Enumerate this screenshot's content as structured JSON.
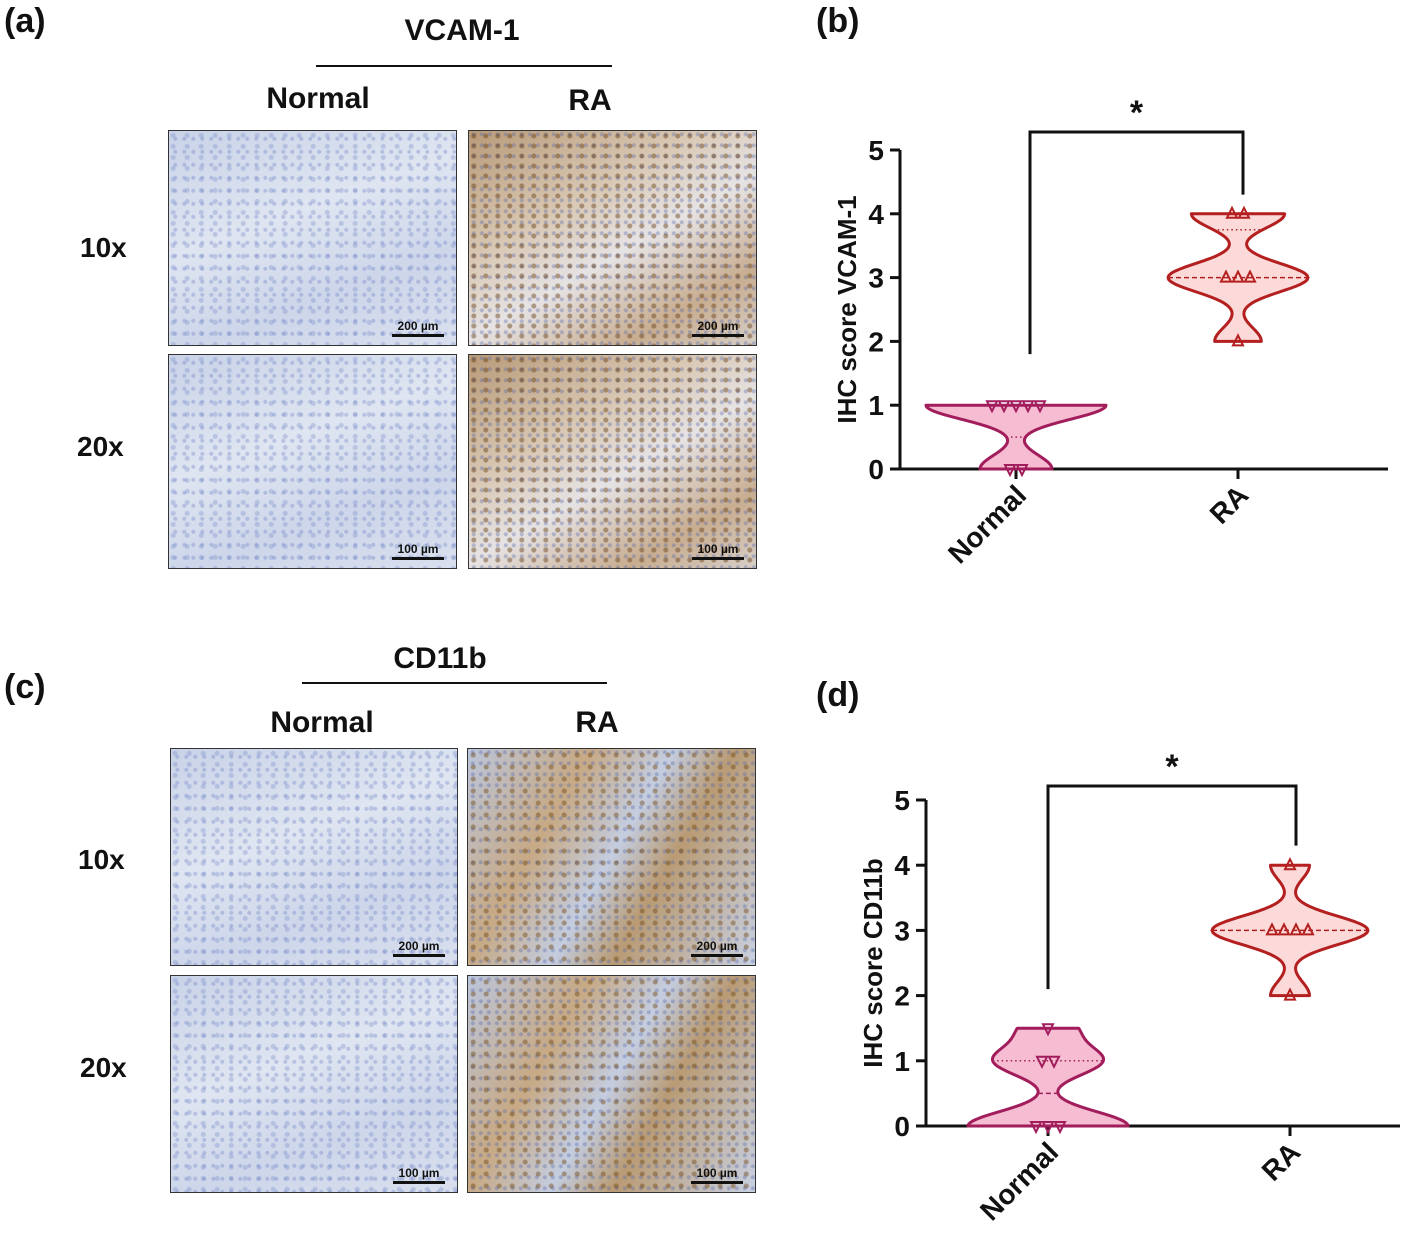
{
  "panels": {
    "a": {
      "label": "(a)",
      "marker": "VCAM-1",
      "cols": [
        "Normal",
        "RA"
      ],
      "rows": [
        "10x",
        "20x"
      ],
      "scales": [
        "200 µm",
        "100 µm"
      ]
    },
    "c": {
      "label": "(c)",
      "marker": "CD11b",
      "cols": [
        "Normal",
        "RA"
      ],
      "rows": [
        "10x",
        "20x"
      ],
      "scales": [
        "200 µm",
        "100 µm"
      ]
    },
    "b": {
      "label": "(b)"
    },
    "d": {
      "label": "(d)"
    }
  },
  "colors": {
    "normal_fill": "#f5bcd2",
    "normal_stroke": "#a11d5c",
    "ra_fill": "#fcdada",
    "ra_stroke": "#b41f1f"
  },
  "chart_data": [
    {
      "type": "violin",
      "panel": "b",
      "ylabel": "IHC score VCAM-1",
      "categories": [
        "Normal",
        "RA"
      ],
      "ylim": [
        0,
        5
      ],
      "yticks": [
        0,
        1,
        2,
        3,
        4,
        5
      ],
      "series": [
        {
          "name": "Normal",
          "values": [
            1,
            1,
            1,
            1,
            1,
            0,
            0
          ],
          "marker": "triangle-down"
        },
        {
          "name": "RA",
          "values": [
            4,
            4,
            3,
            3,
            3,
            2
          ],
          "marker": "triangle-up"
        }
      ],
      "significance": "*"
    },
    {
      "type": "violin",
      "panel": "d",
      "ylabel": "IHC score CD11b",
      "categories": [
        "Normal",
        "RA"
      ],
      "ylim": [
        0,
        5
      ],
      "yticks": [
        0,
        1,
        2,
        3,
        4,
        5
      ],
      "series": [
        {
          "name": "Normal",
          "values": [
            1.5,
            1,
            1,
            0,
            0,
            0
          ],
          "marker": "triangle-down"
        },
        {
          "name": "RA",
          "values": [
            4,
            3,
            3,
            3,
            3,
            2
          ],
          "marker": "triangle-up"
        }
      ],
      "significance": "*"
    }
  ]
}
